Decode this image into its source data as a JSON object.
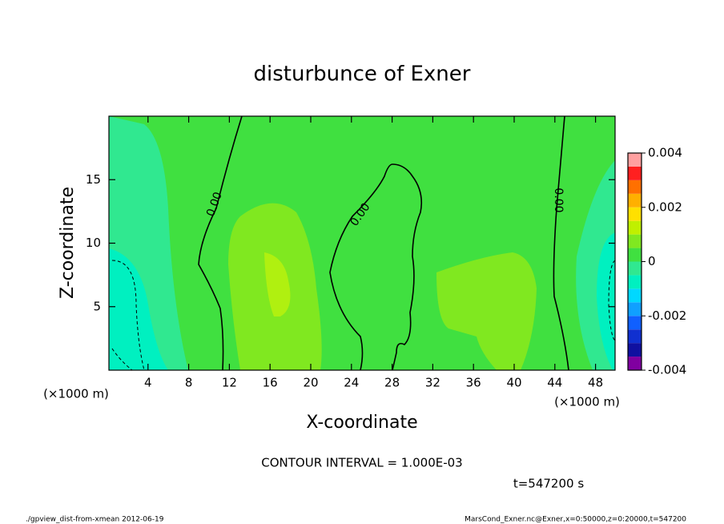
{
  "chart_data": {
    "type": "contour",
    "title": "disturbunce of Exner",
    "x_label": "X-coordinate",
    "y_label": "Z-coordinate",
    "x_unit": "(×1000 m)",
    "y_unit": "(×1000 m)",
    "xlim": [
      0,
      50
    ],
    "ylim": [
      0,
      20
    ],
    "xticks": [
      4,
      8,
      12,
      16,
      20,
      24,
      28,
      32,
      36,
      40,
      44,
      48
    ],
    "yticks": [
      5,
      10,
      15
    ],
    "contour_labels": [
      "0.00",
      "0.00",
      "0.00"
    ],
    "colorbar": {
      "levels": [
        -0.004,
        -0.0035,
        -0.003,
        -0.0025,
        -0.002,
        -0.0015,
        -0.001,
        -0.0005,
        0,
        0.0005,
        0.001,
        0.0015,
        0.002,
        0.0025,
        0.003,
        0.0035,
        0.004
      ],
      "colors": [
        "#8000a0",
        "#1010a0",
        "#1030d0",
        "#1060ff",
        "#10a0ff",
        "#00d8ff",
        "#00f0c0",
        "#30e890",
        "#40e040",
        "#80e820",
        "#c0f000",
        "#ffe000",
        "#ffb000",
        "#ff7000",
        "#ff2020",
        "#ffa0a0"
      ],
      "ticks": [
        -0.004,
        -0.002,
        0,
        0.002,
        0.004
      ]
    },
    "note": "CONTOUR INTERVAL = 1.000E-03",
    "time": "t=547200 s",
    "footer_left": "./gpview_dist-from-xmean  2012-06-19",
    "footer_right": "MarsCond_Exner.nc@Exner,x=0:50000,z=0:20000,t=547200"
  }
}
